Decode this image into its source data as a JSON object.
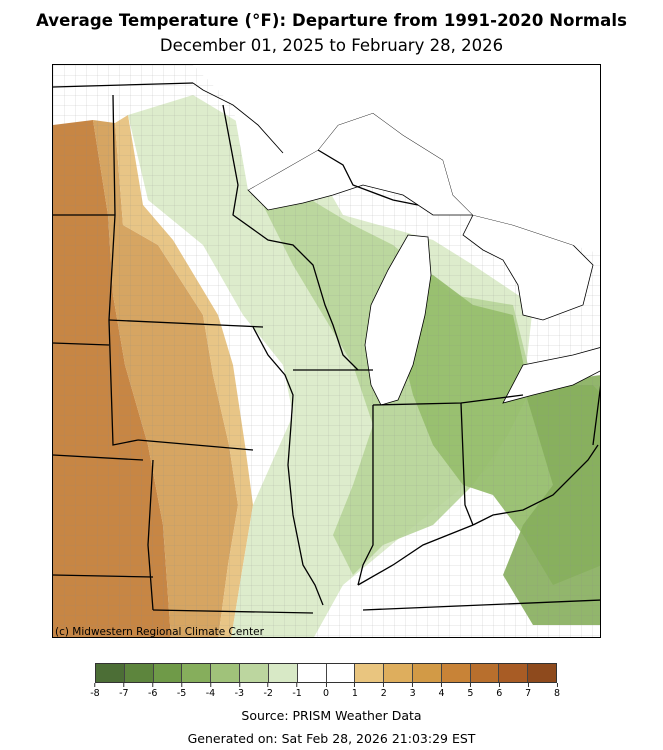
{
  "header": {
    "title": "Average Temperature (°F): Departure from 1991-2020 Normals",
    "subtitle": "December 01, 2025 to February 28, 2026"
  },
  "map": {
    "credit": "(c) Midwestern Regional Climate Center",
    "region": "Upper Midwest and Ohio Valley",
    "palette": {
      "water": "#ffffff",
      "state_border": "#000000",
      "county_border": "#777777"
    }
  },
  "legend": {
    "ticks": [
      "-8",
      "-7",
      "-6",
      "-5",
      "-4",
      "-3",
      "-2",
      "-1",
      "0",
      "1",
      "2",
      "3",
      "4",
      "5",
      "6",
      "7",
      "8"
    ],
    "colors": [
      "#4c6e36",
      "#5d853d",
      "#6f9a48",
      "#86ae5c",
      "#a0c27a",
      "#bcd69f",
      "#d8e9c6",
      "#ffffff",
      "#ffffff",
      "#e9c57f",
      "#deae5d",
      "#d29a46",
      "#c88337",
      "#b86f2d",
      "#a85c25",
      "#8e4a1d"
    ]
  },
  "footer": {
    "source": "Source: PRISM Weather Data",
    "generated": "Generated on: Sat Feb 28, 2026 21:03:29 EST"
  }
}
